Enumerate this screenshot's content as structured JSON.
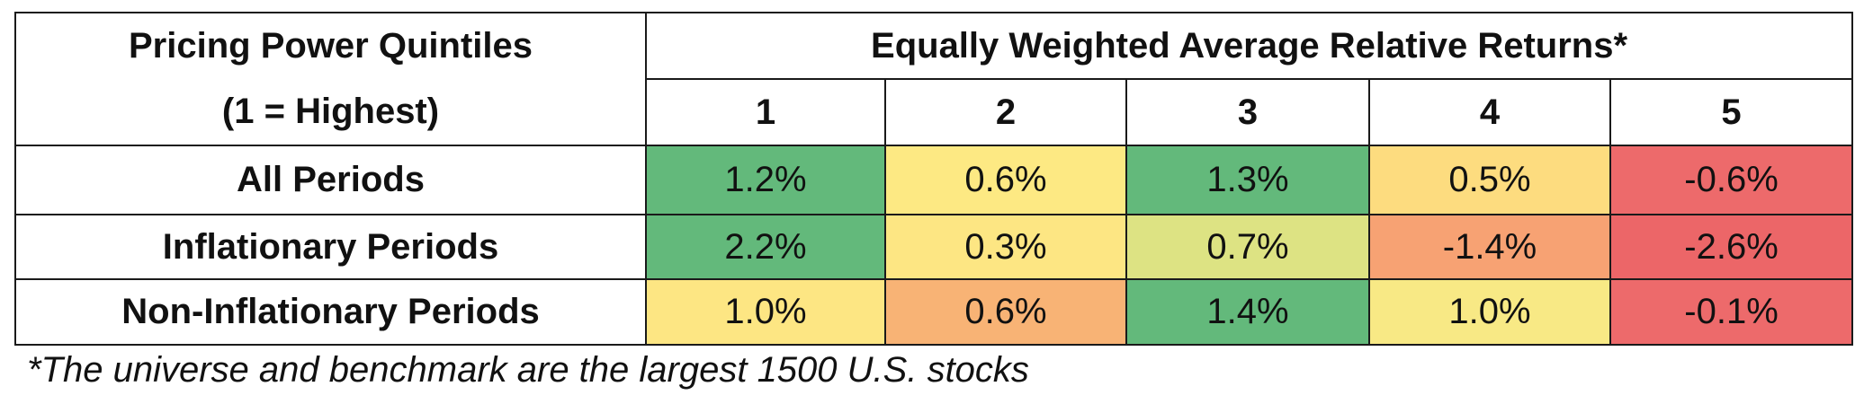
{
  "table": {
    "row_header_title": [
      "Pricing Power Quintiles",
      "(1 = Highest)"
    ],
    "column_group_title": "Equally Weighted Average Relative Returns*",
    "columns": [
      "1",
      "2",
      "3",
      "4",
      "5"
    ],
    "rows": [
      {
        "label": "All Periods",
        "values": [
          "1.2%",
          "0.6%",
          "1.3%",
          "0.5%",
          "-0.6%"
        ],
        "colors": [
          "#63b97b",
          "#fde983",
          "#63b97b",
          "#fddc7f",
          "#ed6a6b"
        ]
      },
      {
        "label": "Inflationary Periods",
        "values": [
          "2.2%",
          "0.3%",
          "0.7%",
          "-1.4%",
          "-2.6%"
        ],
        "colors": [
          "#63b97b",
          "#fde683",
          "#dde383",
          "#f7a273",
          "#ec6668"
        ]
      },
      {
        "label": "Non-Inflationary Periods",
        "values": [
          "1.0%",
          "0.6%",
          "1.4%",
          "1.0%",
          "-0.1%"
        ],
        "colors": [
          "#fde683",
          "#f8b375",
          "#63b97b",
          "#f8e985",
          "#ed6a6b"
        ]
      }
    ],
    "footnote": "*The universe and benchmark are the largest 1500 U.S. stocks"
  }
}
